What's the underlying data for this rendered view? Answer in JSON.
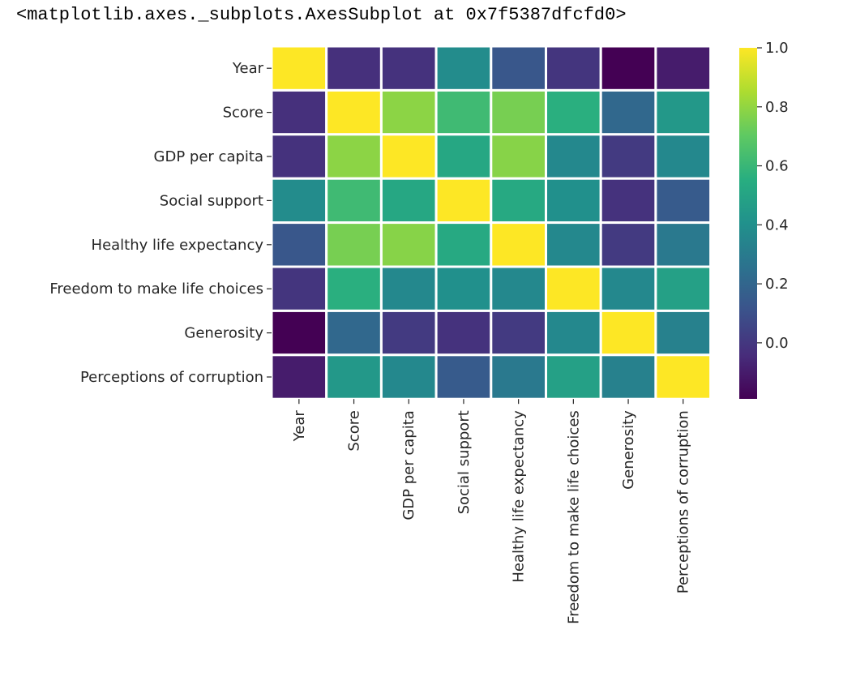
{
  "output_text": "<matplotlib.axes._subplots.AxesSubplot at 0x7f5387dfcfd0>",
  "chart_data": {
    "type": "heatmap",
    "title": "",
    "xlabel": "",
    "ylabel": "",
    "labels": [
      "Year",
      "Score",
      "GDP per capita",
      "Social support",
      "Healthy life expectancy",
      "Freedom to make life choices",
      "Generosity",
      "Perceptions of corruption"
    ],
    "matrix": [
      [
        1.0,
        -0.03,
        -0.02,
        0.38,
        0.13,
        -0.01,
        -0.19,
        -0.1
      ],
      [
        -0.03,
        1.0,
        0.79,
        0.62,
        0.75,
        0.56,
        0.21,
        0.44
      ],
      [
        -0.02,
        0.79,
        1.0,
        0.52,
        0.78,
        0.36,
        0.01,
        0.36
      ],
      [
        0.38,
        0.62,
        0.52,
        1.0,
        0.53,
        0.4,
        -0.02,
        0.15
      ],
      [
        0.13,
        0.75,
        0.78,
        0.53,
        1.0,
        0.36,
        0.01,
        0.29
      ],
      [
        -0.01,
        0.56,
        0.36,
        0.4,
        0.36,
        1.0,
        0.36,
        0.48
      ],
      [
        -0.19,
        0.21,
        0.01,
        -0.02,
        0.01,
        0.36,
        1.0,
        0.33
      ],
      [
        -0.1,
        0.44,
        0.36,
        0.15,
        0.29,
        0.48,
        0.33,
        1.0
      ]
    ],
    "colorbar": {
      "colormap": "viridis",
      "vmin": -0.19,
      "vmax": 1.0,
      "ticks": [
        "0.0",
        "0.2",
        "0.4",
        "0.6",
        "0.8",
        "1.0"
      ]
    },
    "cell_border_color": "#ffffff"
  }
}
